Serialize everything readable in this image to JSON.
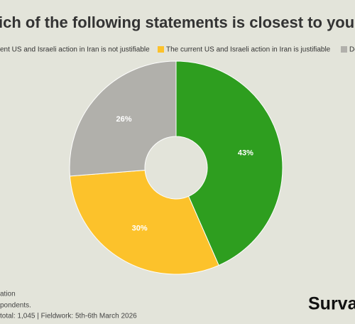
{
  "chart_data": {
    "type": "donut",
    "title": "ich of the following statements is closest to your vie",
    "categories": [
      "ent US and Israeli action in Iran is not justifiable",
      "The current US and Israeli action in Iran is justifiable",
      "Do"
    ],
    "values": [
      43,
      30,
      26
    ],
    "value_labels": [
      "43%",
      "30%",
      "26%"
    ],
    "colors": [
      "#2e9e1f",
      "#fcc22b",
      "#b1b0ab"
    ],
    "legend": "top",
    "footnotes": [
      "ation",
      "pondents.",
      "total: 1,045 | Fieldwork: 5th-6th March 2026"
    ],
    "logo": "Surva"
  }
}
